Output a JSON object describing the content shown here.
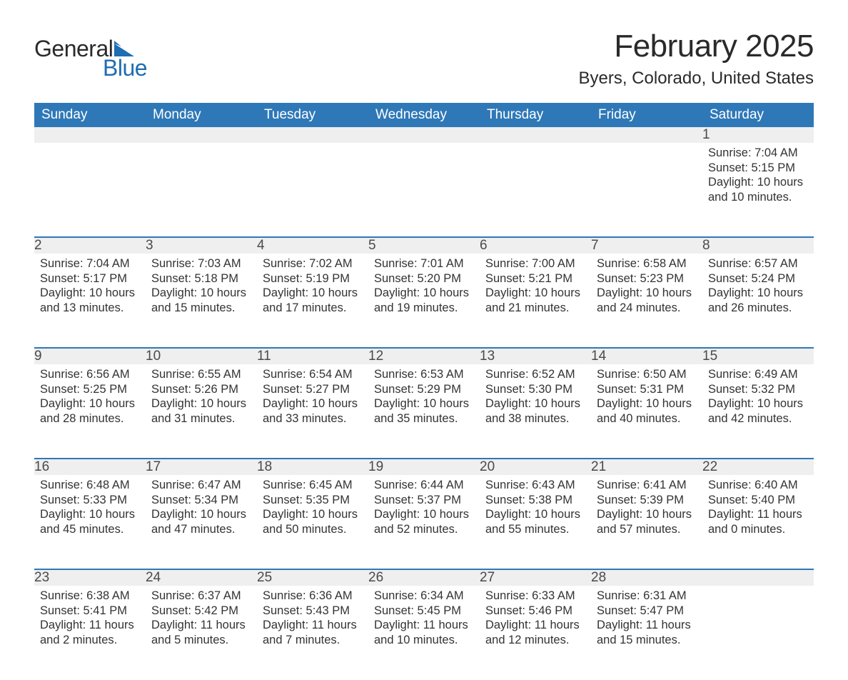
{
  "logo": {
    "text1": "General",
    "text2": "Blue"
  },
  "title": "February 2025",
  "location": "Byers, Colorado, United States",
  "colors": {
    "header_bg": "#2f78b7",
    "header_text": "#ffffff",
    "daynum_bg": "#efefef",
    "row_border": "#2f78b7",
    "body_text": "#333333",
    "logo_dark": "#2a2a2a",
    "logo_blue": "#1f6db2"
  },
  "weekdays": [
    "Sunday",
    "Monday",
    "Tuesday",
    "Wednesday",
    "Thursday",
    "Friday",
    "Saturday"
  ],
  "labels": {
    "sunrise": "Sunrise:",
    "sunset": "Sunset:",
    "daylight": "Daylight:"
  },
  "weeks": [
    [
      null,
      null,
      null,
      null,
      null,
      null,
      {
        "day": "1",
        "sunrise": "7:04 AM",
        "sunset": "5:15 PM",
        "daylight": "10 hours and 10 minutes."
      }
    ],
    [
      {
        "day": "2",
        "sunrise": "7:04 AM",
        "sunset": "5:17 PM",
        "daylight": "10 hours and 13 minutes."
      },
      {
        "day": "3",
        "sunrise": "7:03 AM",
        "sunset": "5:18 PM",
        "daylight": "10 hours and 15 minutes."
      },
      {
        "day": "4",
        "sunrise": "7:02 AM",
        "sunset": "5:19 PM",
        "daylight": "10 hours and 17 minutes."
      },
      {
        "day": "5",
        "sunrise": "7:01 AM",
        "sunset": "5:20 PM",
        "daylight": "10 hours and 19 minutes."
      },
      {
        "day": "6",
        "sunrise": "7:00 AM",
        "sunset": "5:21 PM",
        "daylight": "10 hours and 21 minutes."
      },
      {
        "day": "7",
        "sunrise": "6:58 AM",
        "sunset": "5:23 PM",
        "daylight": "10 hours and 24 minutes."
      },
      {
        "day": "8",
        "sunrise": "6:57 AM",
        "sunset": "5:24 PM",
        "daylight": "10 hours and 26 minutes."
      }
    ],
    [
      {
        "day": "9",
        "sunrise": "6:56 AM",
        "sunset": "5:25 PM",
        "daylight": "10 hours and 28 minutes."
      },
      {
        "day": "10",
        "sunrise": "6:55 AM",
        "sunset": "5:26 PM",
        "daylight": "10 hours and 31 minutes."
      },
      {
        "day": "11",
        "sunrise": "6:54 AM",
        "sunset": "5:27 PM",
        "daylight": "10 hours and 33 minutes."
      },
      {
        "day": "12",
        "sunrise": "6:53 AM",
        "sunset": "5:29 PM",
        "daylight": "10 hours and 35 minutes."
      },
      {
        "day": "13",
        "sunrise": "6:52 AM",
        "sunset": "5:30 PM",
        "daylight": "10 hours and 38 minutes."
      },
      {
        "day": "14",
        "sunrise": "6:50 AM",
        "sunset": "5:31 PM",
        "daylight": "10 hours and 40 minutes."
      },
      {
        "day": "15",
        "sunrise": "6:49 AM",
        "sunset": "5:32 PM",
        "daylight": "10 hours and 42 minutes."
      }
    ],
    [
      {
        "day": "16",
        "sunrise": "6:48 AM",
        "sunset": "5:33 PM",
        "daylight": "10 hours and 45 minutes."
      },
      {
        "day": "17",
        "sunrise": "6:47 AM",
        "sunset": "5:34 PM",
        "daylight": "10 hours and 47 minutes."
      },
      {
        "day": "18",
        "sunrise": "6:45 AM",
        "sunset": "5:35 PM",
        "daylight": "10 hours and 50 minutes."
      },
      {
        "day": "19",
        "sunrise": "6:44 AM",
        "sunset": "5:37 PM",
        "daylight": "10 hours and 52 minutes."
      },
      {
        "day": "20",
        "sunrise": "6:43 AM",
        "sunset": "5:38 PM",
        "daylight": "10 hours and 55 minutes."
      },
      {
        "day": "21",
        "sunrise": "6:41 AM",
        "sunset": "5:39 PM",
        "daylight": "10 hours and 57 minutes."
      },
      {
        "day": "22",
        "sunrise": "6:40 AM",
        "sunset": "5:40 PM",
        "daylight": "11 hours and 0 minutes."
      }
    ],
    [
      {
        "day": "23",
        "sunrise": "6:38 AM",
        "sunset": "5:41 PM",
        "daylight": "11 hours and 2 minutes."
      },
      {
        "day": "24",
        "sunrise": "6:37 AM",
        "sunset": "5:42 PM",
        "daylight": "11 hours and 5 minutes."
      },
      {
        "day": "25",
        "sunrise": "6:36 AM",
        "sunset": "5:43 PM",
        "daylight": "11 hours and 7 minutes."
      },
      {
        "day": "26",
        "sunrise": "6:34 AM",
        "sunset": "5:45 PM",
        "daylight": "11 hours and 10 minutes."
      },
      {
        "day": "27",
        "sunrise": "6:33 AM",
        "sunset": "5:46 PM",
        "daylight": "11 hours and 12 minutes."
      },
      {
        "day": "28",
        "sunrise": "6:31 AM",
        "sunset": "5:47 PM",
        "daylight": "11 hours and 15 minutes."
      },
      null
    ]
  ]
}
